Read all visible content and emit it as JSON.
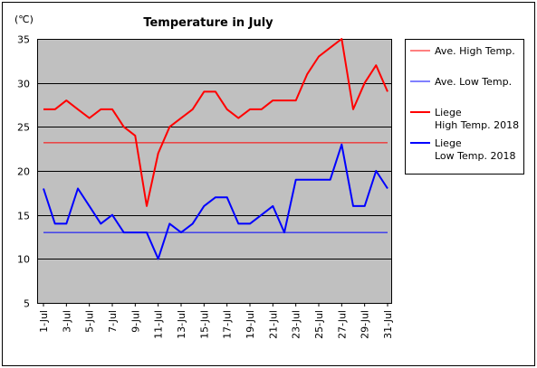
{
  "chart_data": {
    "type": "line",
    "title": "Temperature in July",
    "unit_label": "(℃)",
    "ylim": [
      5,
      35
    ],
    "yticks": [
      5,
      10,
      15,
      20,
      25,
      30,
      35
    ],
    "grid": true,
    "legend_position": "right",
    "x": [
      "1-Jul",
      "2-Jul",
      "3-Jul",
      "4-Jul",
      "5-Jul",
      "6-Jul",
      "7-Jul",
      "8-Jul",
      "9-Jul",
      "10-Jul",
      "11-Jul",
      "12-Jul",
      "13-Jul",
      "14-Jul",
      "15-Jul",
      "16-Jul",
      "17-Jul",
      "18-Jul",
      "19-Jul",
      "20-Jul",
      "21-Jul",
      "22-Jul",
      "23-Jul",
      "24-Jul",
      "25-Jul",
      "26-Jul",
      "27-Jul",
      "28-Jul",
      "29-Jul",
      "30-Jul",
      "31-Jul"
    ],
    "xtick_labels": [
      "1-Jul",
      "3-Jul",
      "5-Jul",
      "7-Jul",
      "9-Jul",
      "11-Jul",
      "13-Jul",
      "15-Jul",
      "17-Jul",
      "19-Jul",
      "21-Jul",
      "23-Jul",
      "25-Jul",
      "27-Jul",
      "29-Jul",
      "31-Jul"
    ],
    "series": [
      {
        "name": "Ave. High Temp.",
        "color": "#ff0000",
        "thick": false,
        "values": [
          23.2,
          23.2,
          23.2,
          23.2,
          23.2,
          23.2,
          23.2,
          23.2,
          23.2,
          23.2,
          23.2,
          23.2,
          23.2,
          23.2,
          23.2,
          23.2,
          23.2,
          23.2,
          23.2,
          23.2,
          23.2,
          23.2,
          23.2,
          23.2,
          23.2,
          23.2,
          23.2,
          23.2,
          23.2,
          23.2,
          23.2
        ]
      },
      {
        "name": "Ave. Low Temp.",
        "color": "#0000ff",
        "thick": false,
        "values": [
          13,
          13,
          13,
          13,
          13,
          13,
          13,
          13,
          13,
          13,
          13,
          13,
          13,
          13,
          13,
          13,
          13,
          13,
          13,
          13,
          13,
          13,
          13,
          13,
          13,
          13,
          13,
          13,
          13,
          13,
          13
        ]
      },
      {
        "name": "Liege\nHigh Temp. 2018",
        "color": "#ff0000",
        "thick": true,
        "values": [
          27,
          27,
          28,
          27,
          26,
          27,
          27,
          25,
          24,
          16,
          22,
          25,
          26,
          27,
          29,
          29,
          27,
          26,
          27,
          27,
          28,
          28,
          28,
          31,
          33,
          34,
          35,
          27,
          30,
          32,
          29
        ]
      },
      {
        "name": "Liege\nLow Temp. 2018",
        "color": "#0000ff",
        "thick": true,
        "values": [
          18,
          14,
          14,
          18,
          16,
          14,
          15,
          13,
          13,
          13,
          10,
          14,
          13,
          14,
          16,
          17,
          17,
          14,
          14,
          15,
          16,
          13,
          19,
          19,
          19,
          19,
          23,
          16,
          16,
          20,
          18
        ]
      }
    ]
  }
}
